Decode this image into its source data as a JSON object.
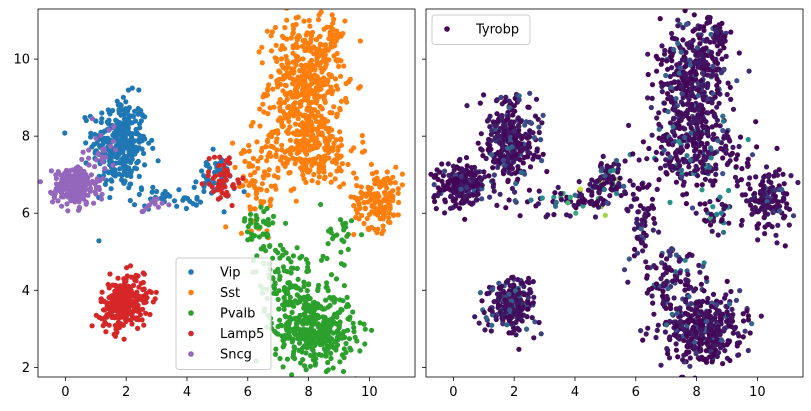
{
  "chart_data": [
    {
      "type": "scatter",
      "xlim": [
        -0.9,
        11.5
      ],
      "ylim": [
        1.75,
        11.3
      ],
      "xticks": [
        "0",
        "2",
        "4",
        "6",
        "8",
        "10"
      ],
      "yticks": [
        "2",
        "4",
        "6",
        "8",
        "10"
      ],
      "legend_position": "lower-center",
      "series": [
        {
          "name": "Vip",
          "color": "#1f77b4",
          "clusters": [
            {
              "cx": 1.8,
              "cy": 7.8,
              "sx": 0.45,
              "sy": 0.6,
              "n": 320
            },
            {
              "cx": 3.4,
              "cy": 6.4,
              "sx": 0.6,
              "sy": 0.15,
              "n": 40
            },
            {
              "cx": 4.9,
              "cy": 6.9,
              "sx": 0.35,
              "sy": 0.3,
              "n": 50
            }
          ]
        },
        {
          "name": "Sst",
          "color": "#ff7f0e",
          "clusters": [
            {
              "cx": 7.9,
              "cy": 9.4,
              "sx": 0.6,
              "sy": 0.8,
              "n": 450
            },
            {
              "cx": 8.0,
              "cy": 7.7,
              "sx": 0.8,
              "sy": 0.5,
              "n": 250
            },
            {
              "cx": 10.3,
              "cy": 6.4,
              "sx": 0.4,
              "sy": 0.4,
              "n": 150
            },
            {
              "cx": 6.4,
              "cy": 6.7,
              "sx": 0.35,
              "sy": 0.5,
              "n": 60
            },
            {
              "cx": 8.8,
              "cy": 10.6,
              "sx": 0.12,
              "sy": 0.18,
              "n": 25
            }
          ]
        },
        {
          "name": "Pvalb",
          "color": "#2ca02c",
          "clusters": [
            {
              "cx": 8.2,
              "cy": 3.0,
              "sx": 0.65,
              "sy": 0.45,
              "n": 400
            },
            {
              "cx": 7.2,
              "cy": 4.3,
              "sx": 0.5,
              "sy": 0.5,
              "n": 100
            },
            {
              "cx": 6.4,
              "cy": 5.6,
              "sx": 0.25,
              "sy": 0.4,
              "n": 40
            },
            {
              "cx": 9.0,
              "cy": 5.3,
              "sx": 0.3,
              "sy": 0.5,
              "n": 30
            }
          ]
        },
        {
          "name": "Lamp5",
          "color": "#d62728",
          "clusters": [
            {
              "cx": 1.9,
              "cy": 3.6,
              "sx": 0.38,
              "sy": 0.3,
              "n": 230
            },
            {
              "cx": 2.3,
              "cy": 4.2,
              "sx": 0.25,
              "sy": 0.2,
              "n": 30
            },
            {
              "cx": 5.2,
              "cy": 6.9,
              "sx": 0.3,
              "sy": 0.35,
              "n": 50
            }
          ]
        },
        {
          "name": "Sncg",
          "color": "#9467bd",
          "clusters": [
            {
              "cx": 0.3,
              "cy": 6.7,
              "sx": 0.35,
              "sy": 0.25,
              "n": 230
            },
            {
              "cx": 1.2,
              "cy": 7.5,
              "sx": 0.2,
              "sy": 0.4,
              "n": 25
            },
            {
              "cx": 2.8,
              "cy": 6.2,
              "sx": 0.2,
              "sy": 0.1,
              "n": 12
            }
          ]
        }
      ]
    },
    {
      "type": "scatter",
      "xlim": [
        -0.9,
        11.5
      ],
      "ylim": [
        1.75,
        11.3
      ],
      "xticks": [
        "0",
        "2",
        "4",
        "6",
        "8",
        "10"
      ],
      "colormap": "viridis",
      "legend_position": "top-left",
      "series": [
        {
          "name": "Tyrobp",
          "color": "#440154",
          "clusters": [
            {
              "cx": 1.8,
              "cy": 7.8,
              "sx": 0.45,
              "sy": 0.6,
              "n": 320,
              "level": 0.12
            },
            {
              "cx": 0.3,
              "cy": 6.7,
              "sx": 0.35,
              "sy": 0.25,
              "n": 230,
              "level": 0.05
            },
            {
              "cx": 1.9,
              "cy": 3.6,
              "sx": 0.38,
              "sy": 0.35,
              "n": 230,
              "level": 0.15
            },
            {
              "cx": 7.9,
              "cy": 9.4,
              "sx": 0.6,
              "sy": 0.8,
              "n": 450,
              "level": 0.1
            },
            {
              "cx": 8.0,
              "cy": 7.6,
              "sx": 0.8,
              "sy": 0.5,
              "n": 250,
              "level": 0.3
            },
            {
              "cx": 10.3,
              "cy": 6.4,
              "sx": 0.4,
              "sy": 0.4,
              "n": 150,
              "level": 0.1
            },
            {
              "cx": 8.2,
              "cy": 3.0,
              "sx": 0.65,
              "sy": 0.45,
              "n": 400,
              "level": 0.08
            },
            {
              "cx": 7.2,
              "cy": 4.3,
              "sx": 0.5,
              "sy": 0.5,
              "n": 100,
              "level": 0.25
            },
            {
              "cx": 6.2,
              "cy": 5.8,
              "sx": 0.3,
              "sy": 0.6,
              "n": 60,
              "level": 0.1
            },
            {
              "cx": 3.6,
              "cy": 6.3,
              "sx": 0.6,
              "sy": 0.2,
              "n": 45,
              "level": 0.45
            },
            {
              "cx": 4.7,
              "cy": 6.5,
              "sx": 0.3,
              "sy": 0.25,
              "n": 40,
              "level": 0.7
            },
            {
              "cx": 5.2,
              "cy": 6.9,
              "sx": 0.3,
              "sy": 0.3,
              "n": 60,
              "level": 0.3
            },
            {
              "cx": 8.8,
              "cy": 10.6,
              "sx": 0.12,
              "sy": 0.18,
              "n": 25,
              "level": 0.05
            },
            {
              "cx": 8.6,
              "cy": 6.0,
              "sx": 0.3,
              "sy": 0.3,
              "n": 35,
              "level": 0.4
            }
          ]
        }
      ]
    }
  ]
}
